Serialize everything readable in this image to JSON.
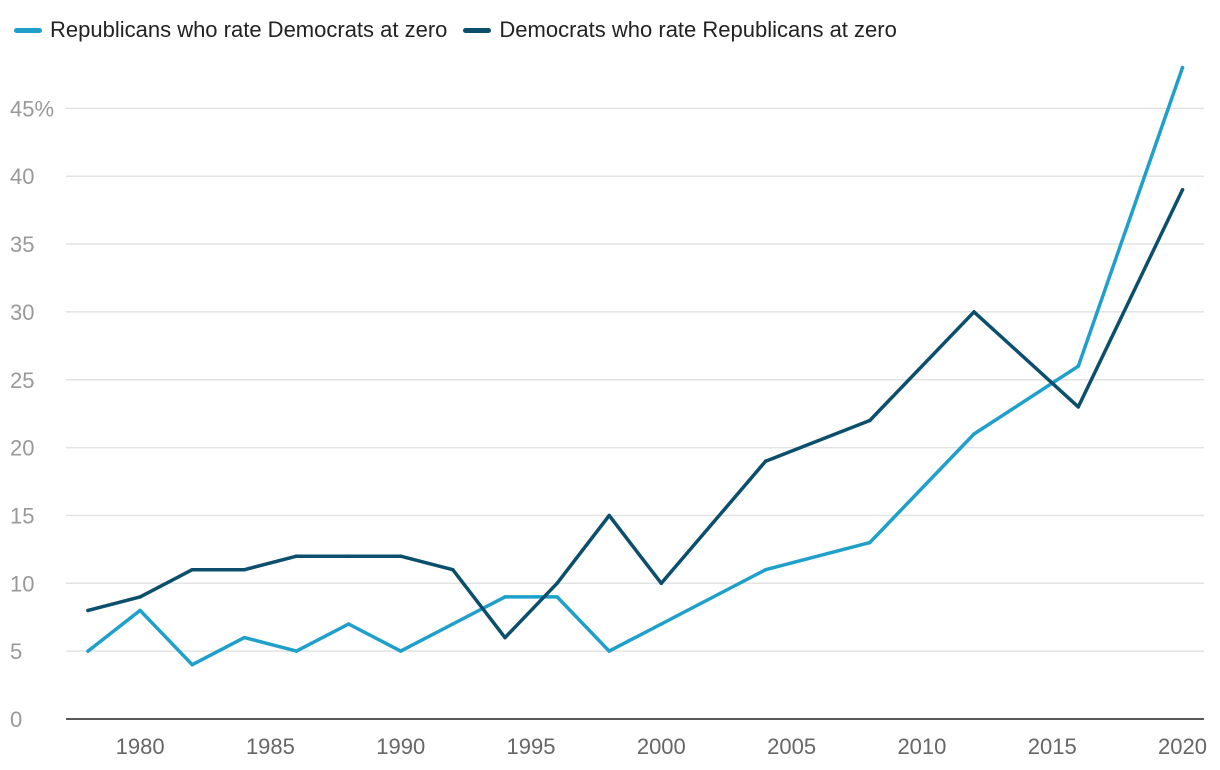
{
  "chart_data": {
    "type": "line",
    "title": "",
    "xlabel": "",
    "ylabel": "",
    "xlim": [
      1977,
      2021
    ],
    "ylim": [
      0,
      48
    ],
    "x_ticks": [
      1980,
      1985,
      1990,
      1995,
      2000,
      2005,
      2010,
      2015,
      2020
    ],
    "y_ticks": [
      0,
      5,
      10,
      15,
      20,
      25,
      30,
      35,
      40,
      45
    ],
    "y_tick_labels": [
      "0",
      "5",
      "10",
      "15",
      "20",
      "25",
      "30",
      "35",
      "40",
      "45%"
    ],
    "grid": true,
    "legend_position": "top-left",
    "series": [
      {
        "name": "Republicans who rate Democrats at zero",
        "color": "#1fa0cb",
        "x": [
          1978,
          1980,
          1982,
          1984,
          1986,
          1988,
          1990,
          1992,
          1994,
          1996,
          1998,
          2000,
          2004,
          2008,
          2012,
          2016,
          2020
        ],
        "values": [
          5,
          8,
          4,
          6,
          5,
          7,
          5,
          7,
          9,
          9,
          5,
          7,
          11,
          13,
          21,
          26,
          48
        ]
      },
      {
        "name": "Democrats who rate Republicans at zero",
        "color": "#0b4f6c",
        "x": [
          1978,
          1980,
          1982,
          1984,
          1986,
          1988,
          1990,
          1992,
          1994,
          1996,
          1998,
          2000,
          2004,
          2008,
          2012,
          2016,
          2020
        ],
        "values": [
          8,
          9,
          11,
          11,
          12,
          12,
          12,
          11,
          6,
          10,
          15,
          10,
          19,
          22,
          30,
          23,
          39
        ]
      }
    ]
  }
}
